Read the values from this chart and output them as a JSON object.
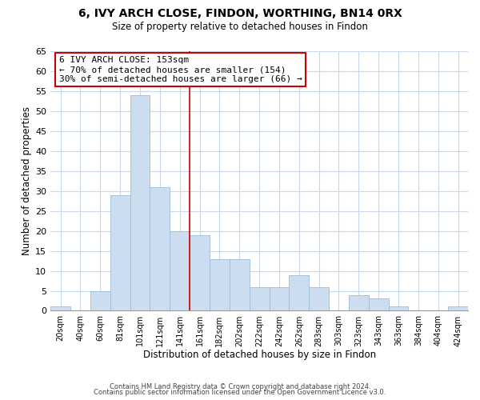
{
  "title": "6, IVY ARCH CLOSE, FINDON, WORTHING, BN14 0RX",
  "subtitle": "Size of property relative to detached houses in Findon",
  "xlabel": "Distribution of detached houses by size in Findon",
  "ylabel": "Number of detached properties",
  "bar_color": "#ccddf0",
  "bar_edge_color": "#9abcd8",
  "categories": [
    "20sqm",
    "40sqm",
    "60sqm",
    "81sqm",
    "101sqm",
    "121sqm",
    "141sqm",
    "161sqm",
    "182sqm",
    "202sqm",
    "222sqm",
    "242sqm",
    "262sqm",
    "283sqm",
    "303sqm",
    "323sqm",
    "343sqm",
    "363sqm",
    "384sqm",
    "404sqm",
    "424sqm"
  ],
  "values": [
    1,
    0,
    5,
    29,
    54,
    31,
    20,
    19,
    13,
    13,
    6,
    6,
    9,
    6,
    0,
    4,
    3,
    1,
    0,
    0,
    1
  ],
  "ylim": [
    0,
    65
  ],
  "yticks": [
    0,
    5,
    10,
    15,
    20,
    25,
    30,
    35,
    40,
    45,
    50,
    55,
    60,
    65
  ],
  "annotation_title": "6 IVY ARCH CLOSE: 153sqm",
  "annotation_line1": "← 70% of detached houses are smaller (154)",
  "annotation_line2": "30% of semi-detached houses are larger (66) →",
  "annotation_box_color": "#ffffff",
  "annotation_box_edge": "#cc0000",
  "vline_color": "#cc0000",
  "footer1": "Contains HM Land Registry data © Crown copyright and database right 2024.",
  "footer2": "Contains public sector information licensed under the Open Government Licence v3.0.",
  "background_color": "#ffffff",
  "grid_color": "#c8d8e8"
}
